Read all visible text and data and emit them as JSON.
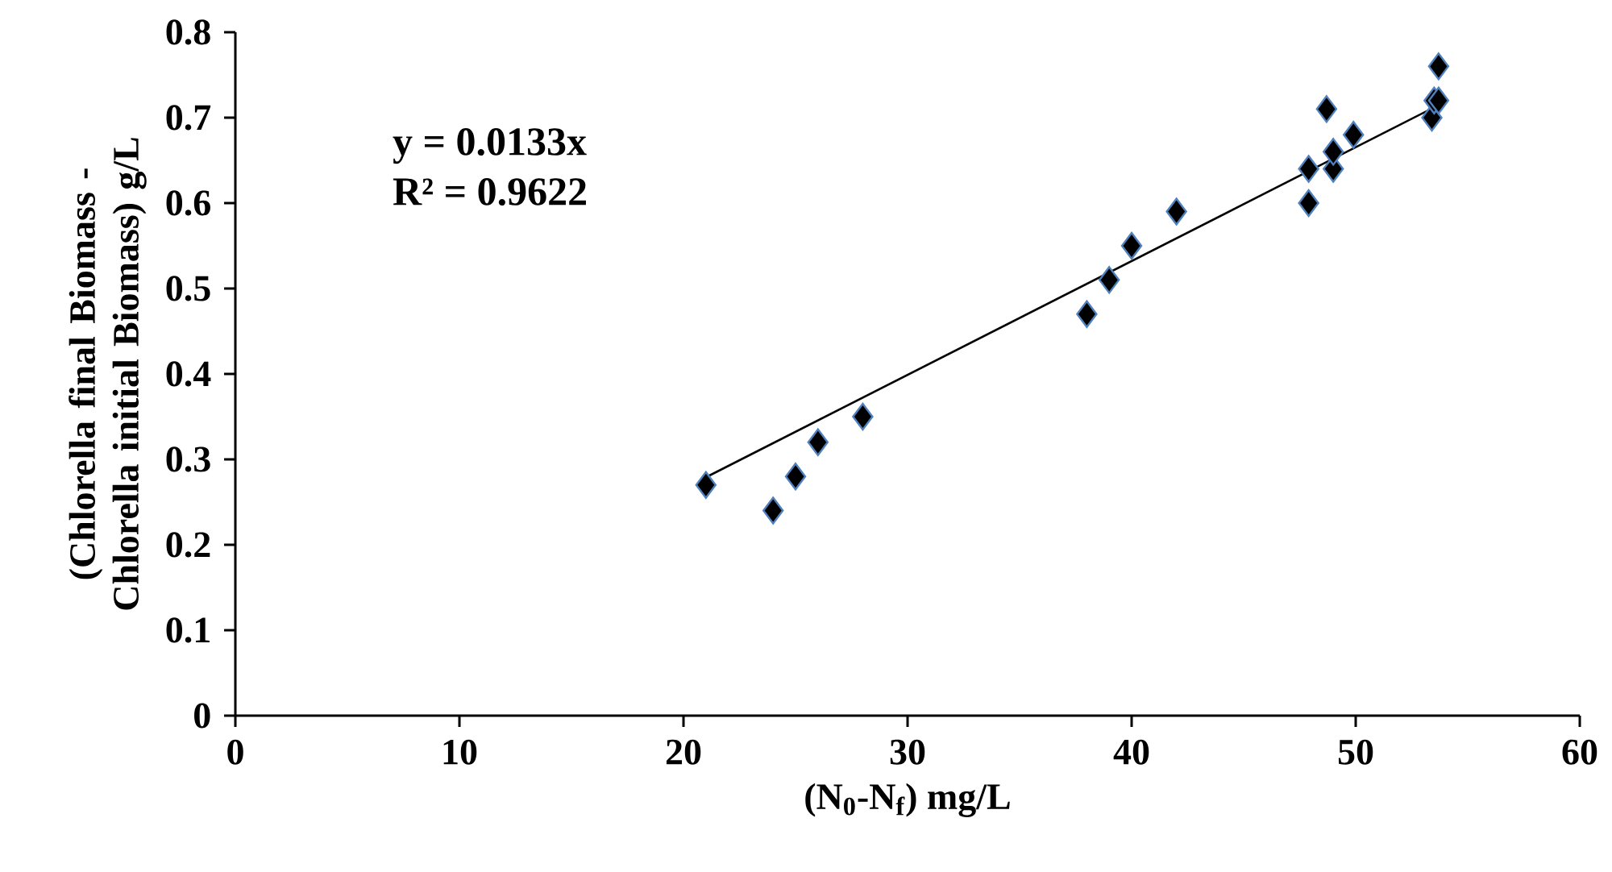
{
  "chart_data": {
    "type": "scatter",
    "xlabel": "(N$_{0}$-N$_{f}$) mg/L",
    "ylabel": "(Chlorella final Biomass - Chlorella initial Biomass) g/L",
    "annotations": [
      "y = 0.0133x",
      "R² = 0.9622"
    ],
    "xlim": [
      0,
      60
    ],
    "xticks": [
      0,
      10,
      20,
      30,
      40,
      50,
      60
    ],
    "ylim": [
      0,
      0.8
    ],
    "yticks": [
      0,
      0.1,
      0.2,
      0.3,
      0.4,
      0.5,
      0.6,
      0.7,
      0.8
    ],
    "series": [
      {
        "marker": "diamond",
        "color": "#000000",
        "x": [
          21,
          24,
          25,
          26,
          28,
          38,
          39,
          40,
          42,
          47.9,
          47.9,
          48.7,
          49,
          49,
          49.9,
          53.4,
          53.5,
          53.7,
          53.7
        ],
        "values": [
          0.27,
          0.24,
          0.28,
          0.32,
          0.35,
          0.47,
          0.51,
          0.55,
          0.59,
          0.6,
          0.64,
          0.71,
          0.64,
          0.66,
          0.68,
          0.7,
          0.72,
          0.72,
          0.76
        ]
      },
      {
        "type": "line",
        "color": "#000000",
        "x": [
          21,
          53.8
        ],
        "values": [
          0.279,
          0.716
        ]
      }
    ]
  }
}
